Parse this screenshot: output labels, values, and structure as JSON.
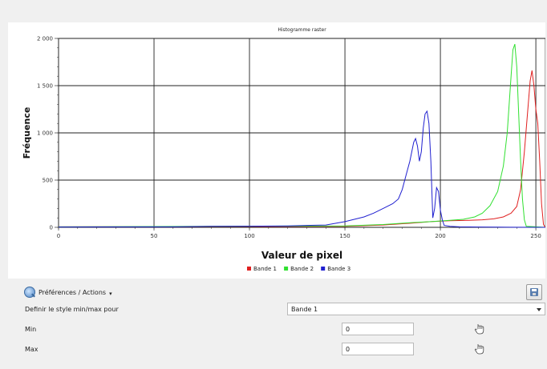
{
  "chart_data": {
    "type": "line",
    "title": "Histogramme raster",
    "xlabel": "Valeur de pixel",
    "ylabel": "Fréquence",
    "xlim": [
      0,
      255
    ],
    "ylim": [
      0,
      2000
    ],
    "xticks": [
      0,
      50,
      100,
      150,
      200,
      250
    ],
    "yticks": [
      0,
      500,
      1000,
      1500,
      2000
    ],
    "ytick_labels": [
      "0",
      "500",
      "1 000",
      "1 500",
      "2 000"
    ],
    "grid": true,
    "legend_position": "bottom-center",
    "series": [
      {
        "name": "Bande 1",
        "color": "#e02020",
        "x": [
          0,
          150,
          170,
          185,
          195,
          205,
          215,
          222,
          228,
          233,
          237,
          240,
          242,
          244,
          246,
          247,
          248,
          249,
          250,
          251,
          252,
          253,
          254,
          255
        ],
        "y": [
          5,
          10,
          25,
          45,
          60,
          70,
          75,
          80,
          90,
          110,
          150,
          220,
          400,
          800,
          1300,
          1550,
          1660,
          1500,
          1250,
          1100,
          700,
          250,
          30,
          0
        ]
      },
      {
        "name": "Bande 2",
        "color": "#30e030",
        "x": [
          0,
          150,
          170,
          185,
          195,
          205,
          212,
          218,
          222,
          226,
          230,
          233,
          235,
          236,
          237,
          238,
          239,
          240,
          241,
          242,
          243,
          244,
          245,
          255
        ],
        "y": [
          5,
          15,
          30,
          50,
          60,
          75,
          85,
          110,
          150,
          230,
          380,
          650,
          1000,
          1300,
          1600,
          1880,
          1940,
          1700,
          1200,
          700,
          300,
          80,
          10,
          0
        ]
      },
      {
        "name": "Bande 3",
        "color": "#2020d0",
        "x": [
          0,
          60,
          80,
          100,
          120,
          140,
          150,
          160,
          165,
          170,
          175,
          178,
          180,
          182,
          184,
          186,
          187,
          188,
          189,
          190,
          191,
          192,
          193,
          194,
          195,
          196,
          197,
          198,
          199,
          200,
          201,
          202,
          205,
          210,
          220,
          230,
          255
        ],
        "y": [
          3,
          5,
          10,
          12,
          15,
          25,
          60,
          110,
          150,
          200,
          250,
          300,
          400,
          550,
          700,
          900,
          940,
          860,
          700,
          800,
          1050,
          1200,
          1230,
          1100,
          700,
          100,
          200,
          420,
          380,
          180,
          80,
          20,
          10,
          5,
          3,
          2,
          0
        ]
      }
    ]
  },
  "toolbar": {
    "preferences_label": "Préférences / Actions",
    "save_icon": "save-icon",
    "preferences_icon": "magnifier-icon"
  },
  "form": {
    "minmax_label": "Definir le style min/max pour",
    "minmax_value": "Bande 1",
    "min_label": "Min",
    "min_value": "0",
    "max_label": "Max",
    "max_value": "0",
    "pick_icon": "hand-pointer-icon"
  }
}
